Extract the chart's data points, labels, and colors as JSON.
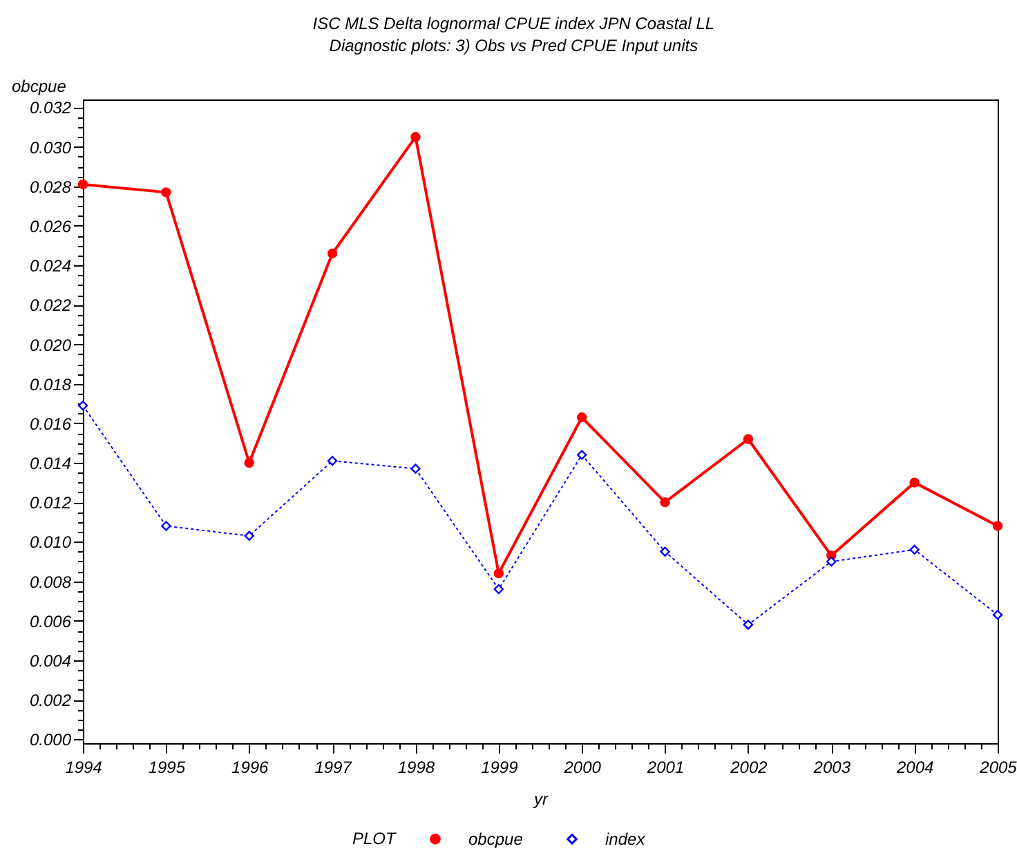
{
  "chart_data": {
    "type": "line",
    "title": "ISC MLS Delta lognormal CPUE index JPN Coastal LL",
    "subtitle": "Diagnostic plots: 3) Obs vs Pred CPUE Input units",
    "xlabel": "yr",
    "ylabel": "obcpue",
    "legend_title": "PLOT",
    "legend": "bottom",
    "x": [
      1994,
      1995,
      1996,
      1997,
      1998,
      1999,
      2000,
      2001,
      2002,
      2003,
      2004,
      2005
    ],
    "series": [
      {
        "name": "obcpue",
        "color": "#ff0000",
        "marker": "circle",
        "line_style": "solid",
        "values": [
          0.0281,
          0.0277,
          0.014,
          0.0246,
          0.0305,
          0.0084,
          0.0163,
          0.012,
          0.0152,
          0.0093,
          0.013,
          0.0108
        ]
      },
      {
        "name": "index",
        "color": "#0000ff",
        "marker": "diamond",
        "line_style": "dotted",
        "values": [
          0.0169,
          0.0108,
          0.0103,
          0.0141,
          0.0137,
          0.0076,
          0.0144,
          0.0095,
          0.0058,
          0.009,
          0.0096,
          0.0063
        ]
      }
    ],
    "xlim": [
      1994,
      2005
    ],
    "ylim": [
      -0.0002,
      0.0324
    ],
    "xticks": [
      1994,
      {
        "value": 1994.2,
        "label": null
      },
      {
        "value": 1994.4,
        "label": null
      },
      {
        "value": 1994.6,
        "label": null
      },
      {
        "value": 1994.8,
        "label": null
      },
      1995,
      {
        "value": 1995.2,
        "label": null
      },
      {
        "value": 1995.4,
        "label": null
      },
      {
        "value": 1995.6,
        "label": null
      },
      {
        "value": 1995.8,
        "label": null
      },
      1996,
      {
        "value": 1996.2,
        "label": null
      },
      {
        "value": 1996.4,
        "label": null
      },
      {
        "value": 1996.6,
        "label": null
      },
      {
        "value": 1996.8,
        "label": null
      },
      1997,
      {
        "value": 1997.2,
        "label": null
      },
      {
        "value": 1997.4,
        "label": null
      },
      {
        "value": 1997.6,
        "label": null
      },
      {
        "value": 1997.8,
        "label": null
      },
      1998,
      {
        "value": 1998.2,
        "label": null
      },
      {
        "value": 1998.4,
        "label": null
      },
      {
        "value": 1998.6,
        "label": null
      },
      {
        "value": 1998.8,
        "label": null
      },
      1999,
      {
        "value": 1999.2,
        "label": null
      },
      {
        "value": 1999.4,
        "label": null
      },
      {
        "value": 1999.6,
        "label": null
      },
      {
        "value": 1999.8,
        "label": null
      },
      2000,
      {
        "value": 2000.2,
        "label": null
      },
      {
        "value": 2000.4,
        "label": null
      },
      {
        "value": 2000.6,
        "label": null
      },
      {
        "value": 2000.8,
        "label": null
      },
      2001,
      {
        "value": 2001.2,
        "label": null
      },
      {
        "value": 2001.4,
        "label": null
      },
      {
        "value": 2001.6,
        "label": null
      },
      {
        "value": 2001.8,
        "label": null
      },
      2002,
      {
        "value": 2002.2,
        "label": null
      },
      {
        "value": 2002.4,
        "label": null
      },
      {
        "value": 2002.6,
        "label": null
      },
      {
        "value": 2002.8,
        "label": null
      },
      2003,
      {
        "value": 2003.2,
        "label": null
      },
      {
        "value": 2003.4,
        "label": null
      },
      {
        "value": 2003.6,
        "label": null
      },
      {
        "value": 2003.8,
        "label": null
      },
      2004,
      {
        "value": 2004.2,
        "label": null
      },
      {
        "value": 2004.4,
        "label": null
      },
      {
        "value": 2004.6,
        "label": null
      },
      {
        "value": 2004.8,
        "label": null
      },
      2005
    ],
    "yticks": [
      {
        "value": 0,
        "label": "0.000"
      },
      {
        "value": 0.0005,
        "label": null
      },
      {
        "value": 0.001,
        "label": null
      },
      {
        "value": 0.0015,
        "label": null
      },
      {
        "value": 0.002,
        "label": "0.002"
      },
      {
        "value": 0.0025,
        "label": null
      },
      {
        "value": 0.003,
        "label": null
      },
      {
        "value": 0.0035,
        "label": null
      },
      {
        "value": 0.004,
        "label": "0.004"
      },
      {
        "value": 0.0045,
        "label": null
      },
      {
        "value": 0.005,
        "label": null
      },
      {
        "value": 0.0055,
        "label": null
      },
      {
        "value": 0.006,
        "label": "0.006"
      },
      {
        "value": 0.0065,
        "label": null
      },
      {
        "value": 0.007,
        "label": null
      },
      {
        "value": 0.0075,
        "label": null
      },
      {
        "value": 0.008,
        "label": "0.008"
      },
      {
        "value": 0.0085,
        "label": null
      },
      {
        "value": 0.009,
        "label": null
      },
      {
        "value": 0.0095,
        "label": null
      },
      {
        "value": 0.01,
        "label": "0.010"
      },
      {
        "value": 0.0105,
        "label": null
      },
      {
        "value": 0.011,
        "label": null
      },
      {
        "value": 0.0115,
        "label": null
      },
      {
        "value": 0.012,
        "label": "0.012"
      },
      {
        "value": 0.0125,
        "label": null
      },
      {
        "value": 0.013,
        "label": null
      },
      {
        "value": 0.0135,
        "label": null
      },
      {
        "value": 0.014,
        "label": "0.014"
      },
      {
        "value": 0.0145,
        "label": null
      },
      {
        "value": 0.015,
        "label": null
      },
      {
        "value": 0.0155,
        "label": null
      },
      {
        "value": 0.016,
        "label": "0.016"
      },
      {
        "value": 0.0165,
        "label": null
      },
      {
        "value": 0.017,
        "label": null
      },
      {
        "value": 0.0175,
        "label": null
      },
      {
        "value": 0.018,
        "label": "0.018"
      },
      {
        "value": 0.0185,
        "label": null
      },
      {
        "value": 0.019,
        "label": null
      },
      {
        "value": 0.0195,
        "label": null
      },
      {
        "value": 0.02,
        "label": "0.020"
      },
      {
        "value": 0.0205,
        "label": null
      },
      {
        "value": 0.021,
        "label": null
      },
      {
        "value": 0.0215,
        "label": null
      },
      {
        "value": 0.022,
        "label": "0.022"
      },
      {
        "value": 0.0225,
        "label": null
      },
      {
        "value": 0.023,
        "label": null
      },
      {
        "value": 0.0235,
        "label": null
      },
      {
        "value": 0.024,
        "label": "0.024"
      },
      {
        "value": 0.0245,
        "label": null
      },
      {
        "value": 0.025,
        "label": null
      },
      {
        "value": 0.0255,
        "label": null
      },
      {
        "value": 0.026,
        "label": "0.026"
      },
      {
        "value": 0.0265,
        "label": null
      },
      {
        "value": 0.027,
        "label": null
      },
      {
        "value": 0.0275,
        "label": null
      },
      {
        "value": 0.028,
        "label": "0.028"
      },
      {
        "value": 0.0285,
        "label": null
      },
      {
        "value": 0.029,
        "label": null
      },
      {
        "value": 0.0295,
        "label": null
      },
      {
        "value": 0.03,
        "label": "0.030"
      },
      {
        "value": 0.0305,
        "label": null
      },
      {
        "value": 0.031,
        "label": null
      },
      {
        "value": 0.0315,
        "label": null
      },
      {
        "value": 0.032,
        "label": "0.032"
      }
    ]
  }
}
